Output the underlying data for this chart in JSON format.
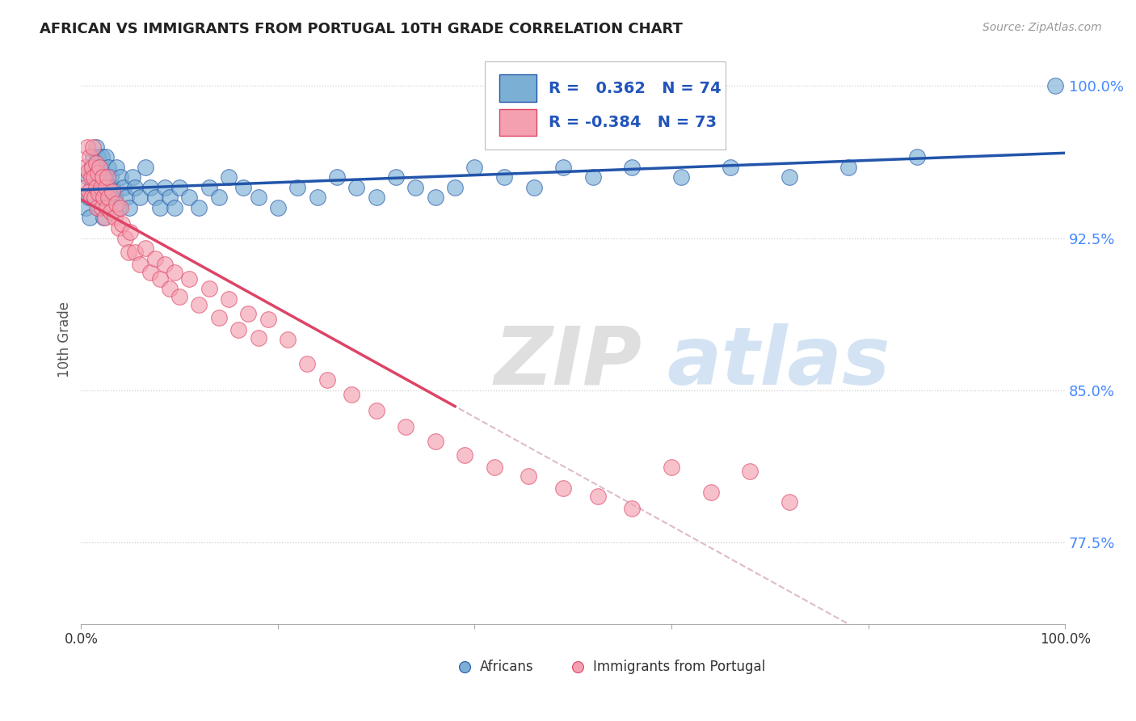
{
  "title": "AFRICAN VS IMMIGRANTS FROM PORTUGAL 10TH GRADE CORRELATION CHART",
  "source": "Source: ZipAtlas.com",
  "ylabel": "10th Grade",
  "xlim": [
    0.0,
    1.0
  ],
  "ylim": [
    0.735,
    1.015
  ],
  "yticks": [
    0.775,
    0.85,
    0.925,
    1.0
  ],
  "ytick_labels": [
    "77.5%",
    "85.0%",
    "92.5%",
    "100.0%"
  ],
  "xticks": [
    0.0,
    0.2,
    0.4,
    0.6,
    0.8,
    1.0
  ],
  "xtick_labels": [
    "0.0%",
    "",
    "",
    "",
    "",
    "100.0%"
  ],
  "africans_color": "#7bafd4",
  "portugal_color": "#f4a0b0",
  "trendline_africans_color": "#2255aa",
  "trendline_portugal_color": "#dd4466",
  "trendline_dashed_color": "#ddbbcc",
  "R_africans": 0.362,
  "N_africans": 74,
  "R_portugal": -0.384,
  "N_portugal": 73,
  "legend_africans": "Africans",
  "legend_portugal": "Immigrants from Portugal",
  "watermark_zip": "ZIP",
  "watermark_atlas": "atlas",
  "africans_x": [
    0.005,
    0.007,
    0.008,
    0.009,
    0.01,
    0.01,
    0.012,
    0.013,
    0.014,
    0.015,
    0.015,
    0.016,
    0.017,
    0.018,
    0.018,
    0.019,
    0.02,
    0.021,
    0.022,
    0.023,
    0.023,
    0.025,
    0.026,
    0.027,
    0.028,
    0.03,
    0.032,
    0.034,
    0.036,
    0.038,
    0.04,
    0.043,
    0.046,
    0.049,
    0.052,
    0.055,
    0.06,
    0.065,
    0.07,
    0.075,
    0.08,
    0.085,
    0.09,
    0.095,
    0.1,
    0.11,
    0.12,
    0.13,
    0.14,
    0.15,
    0.165,
    0.18,
    0.2,
    0.22,
    0.24,
    0.26,
    0.28,
    0.3,
    0.32,
    0.34,
    0.36,
    0.38,
    0.4,
    0.43,
    0.46,
    0.49,
    0.52,
    0.56,
    0.61,
    0.66,
    0.72,
    0.78,
    0.85,
    0.99
  ],
  "africans_y": [
    0.94,
    0.955,
    0.945,
    0.935,
    0.96,
    0.95,
    0.965,
    0.955,
    0.945,
    0.97,
    0.96,
    0.95,
    0.965,
    0.955,
    0.94,
    0.96,
    0.95,
    0.965,
    0.955,
    0.945,
    0.935,
    0.965,
    0.955,
    0.945,
    0.96,
    0.955,
    0.95,
    0.945,
    0.96,
    0.94,
    0.955,
    0.95,
    0.945,
    0.94,
    0.955,
    0.95,
    0.945,
    0.96,
    0.95,
    0.945,
    0.94,
    0.95,
    0.945,
    0.94,
    0.95,
    0.945,
    0.94,
    0.95,
    0.945,
    0.955,
    0.95,
    0.945,
    0.94,
    0.95,
    0.945,
    0.955,
    0.95,
    0.945,
    0.955,
    0.95,
    0.945,
    0.95,
    0.96,
    0.955,
    0.95,
    0.96,
    0.955,
    0.96,
    0.955,
    0.96,
    0.955,
    0.96,
    0.965,
    1.0
  ],
  "portugal_x": [
    0.004,
    0.005,
    0.006,
    0.007,
    0.008,
    0.009,
    0.01,
    0.01,
    0.011,
    0.012,
    0.013,
    0.014,
    0.015,
    0.015,
    0.016,
    0.017,
    0.018,
    0.019,
    0.02,
    0.021,
    0.022,
    0.023,
    0.024,
    0.025,
    0.026,
    0.027,
    0.028,
    0.03,
    0.032,
    0.034,
    0.036,
    0.038,
    0.04,
    0.042,
    0.045,
    0.048,
    0.05,
    0.055,
    0.06,
    0.065,
    0.07,
    0.075,
    0.08,
    0.085,
    0.09,
    0.095,
    0.1,
    0.11,
    0.12,
    0.13,
    0.14,
    0.15,
    0.16,
    0.17,
    0.18,
    0.19,
    0.21,
    0.23,
    0.25,
    0.275,
    0.3,
    0.33,
    0.36,
    0.39,
    0.42,
    0.455,
    0.49,
    0.525,
    0.56,
    0.6,
    0.64,
    0.68,
    0.72
  ],
  "portugal_y": [
    0.96,
    0.95,
    0.97,
    0.958,
    0.948,
    0.965,
    0.955,
    0.945,
    0.96,
    0.97,
    0.955,
    0.945,
    0.962,
    0.95,
    0.94,
    0.957,
    0.947,
    0.96,
    0.95,
    0.94,
    0.955,
    0.945,
    0.935,
    0.95,
    0.94,
    0.955,
    0.945,
    0.938,
    0.948,
    0.935,
    0.942,
    0.93,
    0.94,
    0.932,
    0.925,
    0.918,
    0.928,
    0.918,
    0.912,
    0.92,
    0.908,
    0.915,
    0.905,
    0.912,
    0.9,
    0.908,
    0.896,
    0.905,
    0.892,
    0.9,
    0.886,
    0.895,
    0.88,
    0.888,
    0.876,
    0.885,
    0.875,
    0.863,
    0.855,
    0.848,
    0.84,
    0.832,
    0.825,
    0.818,
    0.812,
    0.808,
    0.802,
    0.798,
    0.792,
    0.812,
    0.8,
    0.81,
    0.795
  ]
}
